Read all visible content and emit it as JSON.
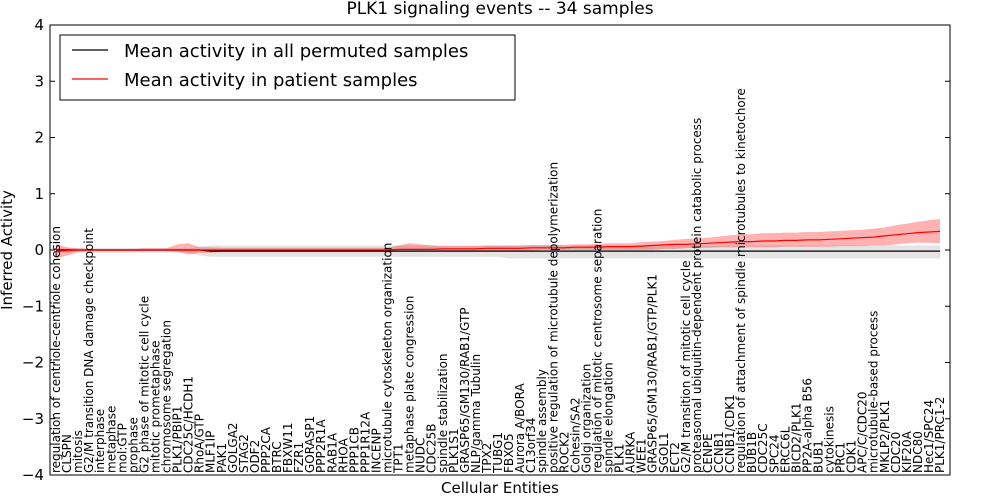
{
  "chart_data": {
    "type": "line",
    "title": "PLK1 signaling events -- 34 samples",
    "xlabel": "Cellular Entities",
    "ylabel": "Inferred Activity",
    "ylim": [
      -4,
      4
    ],
    "yticks": [
      -4,
      -3,
      -2,
      -1,
      0,
      1,
      2,
      3,
      4
    ],
    "ytick_labels": [
      "−4",
      "−3",
      "−2",
      "−1",
      "0",
      "1",
      "2",
      "3",
      "4"
    ],
    "legend": {
      "placement": "top-left",
      "entries": [
        {
          "label": "Mean activity in all permuted samples",
          "color": "#000000"
        },
        {
          "label": "Mean activity in patient samples",
          "color": "#ff0000"
        }
      ]
    },
    "categories": [
      "regulation of centriole-centriole cohesion",
      "CLSPN",
      "mitosis",
      "G2/M transition DNA damage checkpoint",
      "interphase",
      "metaphase",
      "mol:GTP",
      "prophase",
      "G2 phase of mitotic cell cycle",
      "mitotic prometaphase",
      "chromosome segregation",
      "PLK1/PBIP1",
      "CDC25C/HCDH1",
      "RhoA/GTP",
      "MLF1IP",
      "PAK1",
      "GOLGA2",
      "STAG2",
      "ODF2",
      "PPP2CA",
      "BTRC",
      "FBXW11",
      "FZR1",
      "GORASP1",
      "PPP2R1A",
      "RAB1A",
      "RHOA",
      "PPP1CB",
      "PPP1R12A",
      "INCENP",
      "microtubule cytoskeleton organization",
      "TPT1",
      "metaphase plate congression",
      "NUDC",
      "CDC25B",
      "spindle stabilization",
      "PLK1S1",
      "GRASP65/GM130/RAB1/GTP",
      "NLP/gamma Tubulin",
      "TPX2",
      "TUBG1",
      "FBXO5",
      "Aurora A/BORA",
      "C13orf34",
      "spindle assembly",
      "positive regulation of microtubule depolymerization",
      "ROCK2",
      "Cohesin/SA2",
      "Golgi organization",
      "regulation of mitotic centrosome separation",
      "spindle elongation",
      "PLK1",
      "AURKA",
      "WEE1",
      "GRASP65/GM130/RAB1/GTP/PLK1",
      "SGOL1",
      "ECT2",
      "G2/M transition of mitotic cell cycle",
      "proteasomal ubiquitin-dependent protein catabolic process",
      "CENPE",
      "CCNB1",
      "CCNB1/CDK1",
      "regulation of attachment of spindle microtubules to kinetochore",
      "BUB1B",
      "CDC25C",
      "SPC24",
      "ERCC6L",
      "BICD2/PLK1",
      "PP2A-alpha B56",
      "BUB1",
      "cytokinesis",
      "PRC1",
      "CDK1",
      "APC/C/CDC20",
      "microtubule-based process",
      "MKLP2/PLK1",
      "CDC20",
      "KIF20A",
      "NDC80",
      "Hec1/SPC24",
      "PLK1/PRC1-2"
    ],
    "series": [
      {
        "name": "Mean activity in all permuted samples",
        "color": "#000000",
        "values": [
          0,
          0,
          0,
          0,
          0,
          0,
          0,
          0,
          0,
          0,
          0,
          0,
          0,
          0,
          -0.02,
          -0.02,
          -0.02,
          -0.02,
          -0.02,
          -0.02,
          -0.02,
          -0.02,
          -0.02,
          -0.02,
          -0.02,
          -0.02,
          -0.02,
          -0.02,
          -0.02,
          -0.02,
          -0.02,
          -0.02,
          -0.02,
          -0.02,
          -0.02,
          -0.02,
          -0.02,
          -0.02,
          -0.02,
          -0.02,
          -0.02,
          -0.02,
          -0.02,
          -0.02,
          -0.02,
          -0.02,
          -0.02,
          -0.02,
          -0.02,
          -0.02,
          -0.02,
          -0.02,
          -0.02,
          -0.02,
          -0.02,
          -0.02,
          -0.02,
          -0.02,
          -0.02,
          -0.02,
          -0.02,
          -0.02,
          -0.02,
          -0.02,
          -0.02,
          -0.02,
          -0.02,
          -0.02,
          -0.02,
          -0.02,
          -0.02,
          -0.02,
          -0.02,
          -0.02,
          -0.02,
          -0.02,
          -0.02,
          -0.02,
          -0.02,
          -0.02,
          -0.02
        ],
        "band_low": [
          -0.05,
          -0.05,
          -0.05,
          -0.05,
          -0.05,
          -0.05,
          -0.05,
          -0.05,
          -0.05,
          -0.05,
          -0.05,
          -0.05,
          -0.05,
          -0.1,
          -0.12,
          -0.12,
          -0.12,
          -0.12,
          -0.12,
          -0.12,
          -0.12,
          -0.12,
          -0.12,
          -0.12,
          -0.12,
          -0.12,
          -0.12,
          -0.12,
          -0.12,
          -0.12,
          -0.12,
          -0.12,
          -0.12,
          -0.12,
          -0.12,
          -0.12,
          -0.12,
          -0.12,
          -0.12,
          -0.12,
          -0.12,
          -0.15,
          -0.15,
          -0.15,
          -0.15,
          -0.15,
          -0.15,
          -0.15,
          -0.15,
          -0.15,
          -0.15,
          -0.15,
          -0.15,
          -0.15,
          -0.15,
          -0.15,
          -0.15,
          -0.15,
          -0.15,
          -0.15,
          -0.15,
          -0.15,
          -0.15,
          -0.15,
          -0.15,
          -0.15,
          -0.15,
          -0.15,
          -0.15,
          -0.15,
          -0.15,
          -0.15,
          -0.15,
          -0.15,
          -0.15,
          -0.15,
          -0.15,
          -0.15,
          -0.15,
          -0.15,
          -0.15
        ],
        "band_high": [
          0.03,
          0.03,
          0.03,
          0.03,
          0.03,
          0.03,
          0.03,
          0.03,
          0.03,
          0.03,
          0.03,
          0.03,
          0.03,
          0.06,
          0.08,
          0.08,
          0.08,
          0.08,
          0.08,
          0.08,
          0.08,
          0.08,
          0.08,
          0.08,
          0.08,
          0.08,
          0.08,
          0.08,
          0.08,
          0.08,
          0.08,
          0.08,
          0.08,
          0.08,
          0.08,
          0.08,
          0.08,
          0.08,
          0.08,
          0.08,
          0.08,
          0.08,
          0.08,
          0.08,
          0.08,
          0.08,
          0.08,
          0.08,
          0.08,
          0.08,
          0.08,
          0.08,
          0.08,
          0.08,
          0.08,
          0.08,
          0.08,
          0.08,
          0.08,
          0.08,
          0.08,
          0.08,
          0.08,
          0.08,
          0.08,
          0.08,
          0.08,
          0.08,
          0.08,
          0.08,
          0.08,
          0.08,
          0.08,
          0.08,
          0.08,
          0.08,
          0.08,
          0.08,
          0.08,
          0.08,
          0.08
        ]
      },
      {
        "name": "Mean activity in patient samples",
        "color": "#ff0000",
        "values": [
          -0.02,
          -0.01,
          0,
          0,
          0,
          0,
          0,
          0,
          0,
          0,
          0,
          0,
          0,
          0,
          0,
          0,
          0,
          0,
          0,
          0,
          0,
          0,
          0,
          0,
          0,
          0,
          0,
          0,
          0,
          0,
          0,
          0.01,
          0.01,
          0.01,
          0.01,
          0.02,
          0.02,
          0.02,
          0.02,
          0.03,
          0.03,
          0.03,
          0.03,
          0.04,
          0.04,
          0.04,
          0.04,
          0.05,
          0.05,
          0.05,
          0.06,
          0.06,
          0.06,
          0.07,
          0.08,
          0.09,
          0.1,
          0.1,
          0.11,
          0.12,
          0.13,
          0.14,
          0.15,
          0.15,
          0.16,
          0.16,
          0.17,
          0.17,
          0.18,
          0.18,
          0.19,
          0.2,
          0.21,
          0.22,
          0.23,
          0.25,
          0.27,
          0.29,
          0.31,
          0.32,
          0.33
        ],
        "band_low": [
          -0.15,
          -0.1,
          -0.03,
          -0.02,
          -0.02,
          -0.02,
          -0.02,
          -0.02,
          -0.02,
          -0.02,
          -0.02,
          -0.03,
          -0.08,
          -0.05,
          -0.05,
          -0.03,
          -0.03,
          -0.03,
          -0.03,
          -0.03,
          -0.03,
          -0.03,
          -0.03,
          -0.03,
          -0.03,
          -0.03,
          -0.03,
          -0.03,
          -0.03,
          -0.03,
          -0.03,
          -0.03,
          -0.03,
          -0.03,
          -0.02,
          -0.02,
          -0.02,
          -0.02,
          -0.02,
          -0.02,
          -0.01,
          -0.01,
          -0.01,
          -0.01,
          0,
          0,
          0,
          0,
          0,
          0,
          0,
          0,
          0,
          0,
          0,
          0.02,
          0.02,
          0.03,
          0.04,
          0.04,
          0.05,
          0.05,
          0.05,
          0.05,
          0.05,
          0.05,
          0.06,
          0.06,
          0.06,
          0.06,
          0.06,
          0.07,
          0.07,
          0.07,
          0.08,
          0.08,
          0.1,
          0.12,
          0.13,
          0.13,
          0.12
        ],
        "band_high": [
          0.1,
          0.05,
          0.03,
          0.02,
          0.02,
          0.02,
          0.02,
          0.02,
          0.03,
          0.03,
          0.03,
          0.1,
          0.12,
          0.05,
          0.05,
          0.04,
          0.04,
          0.04,
          0.04,
          0.04,
          0.04,
          0.04,
          0.04,
          0.04,
          0.04,
          0.04,
          0.04,
          0.04,
          0.04,
          0.04,
          0.04,
          0.08,
          0.12,
          0.1,
          0.08,
          0.07,
          0.07,
          0.07,
          0.07,
          0.08,
          0.08,
          0.08,
          0.08,
          0.09,
          0.09,
          0.09,
          0.09,
          0.1,
          0.1,
          0.11,
          0.12,
          0.12,
          0.12,
          0.14,
          0.15,
          0.16,
          0.18,
          0.2,
          0.2,
          0.22,
          0.24,
          0.26,
          0.28,
          0.28,
          0.3,
          0.3,
          0.31,
          0.31,
          0.32,
          0.32,
          0.33,
          0.34,
          0.35,
          0.36,
          0.38,
          0.4,
          0.44,
          0.47,
          0.5,
          0.53,
          0.55
        ]
      }
    ]
  }
}
